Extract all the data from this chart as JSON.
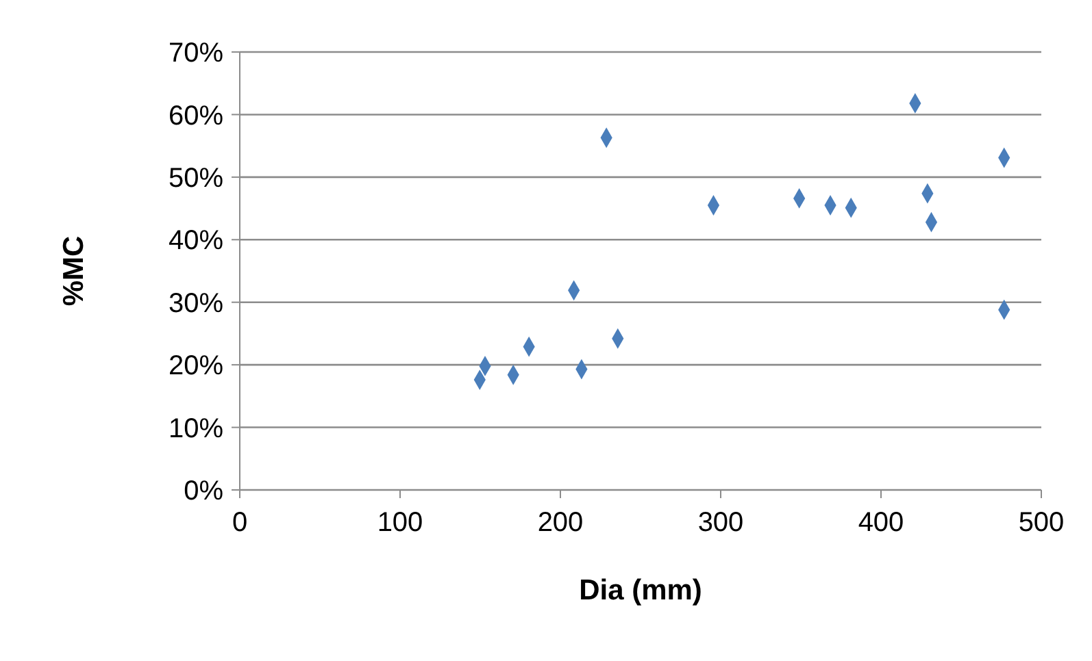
{
  "chart_data": {
    "type": "scatter",
    "xlabel": "Dia (mm)",
    "ylabel": "%MC",
    "x": [
      149.7,
      153,
      170.6,
      180.4,
      208.4,
      213.2,
      235.8,
      228.7,
      295.5,
      349,
      368.4,
      381.3,
      421.3,
      429,
      431.4,
      476.8,
      476.8
    ],
    "series": [
      {
        "color": "#4a7ebb",
        "values": [
          17.6,
          19.8,
          18.4,
          22.9,
          31.9,
          19.3,
          24.2,
          56.3,
          45.5,
          46.6,
          45.5,
          45.1,
          61.8,
          47.4,
          42.8,
          53.1,
          28.8
        ]
      }
    ],
    "xlim": [
      0,
      500
    ],
    "xticks": [
      0,
      100,
      200,
      300,
      400,
      500
    ],
    "ylim": [
      0,
      70
    ],
    "yticks": [
      {
        "value": 0,
        "label": "0%"
      },
      {
        "value": 10,
        "label": "10%"
      },
      {
        "value": 20,
        "label": "20%"
      },
      {
        "value": 30,
        "label": "30%"
      },
      {
        "value": 40,
        "label": "40%"
      },
      {
        "value": 50,
        "label": "50%"
      },
      {
        "value": 60,
        "label": "60%"
      },
      {
        "value": 70,
        "label": "70%"
      }
    ],
    "grid": "y",
    "marker": "diamond",
    "legend": false
  }
}
